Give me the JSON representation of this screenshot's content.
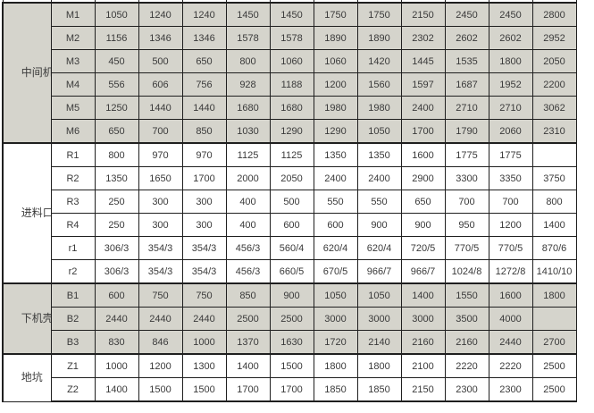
{
  "page": {
    "background": "#ffffff"
  },
  "table": {
    "border_color": "#1f1f1f",
    "text_color": "#3a3a3a",
    "shaded_bg": "#d5d4cc",
    "plain_bg": "#ffffff",
    "data_columns": 11,
    "groups": [
      {
        "id": "middle-casing",
        "label": "中间机壳",
        "label_shaded": false,
        "rows_shaded": true,
        "rows": [
          {
            "key": "M1",
            "values": [
              "1050",
              "1240",
              "1240",
              "1450",
              "1450",
              "1750",
              "1750",
              "2150",
              "2450",
              "2450",
              "2800"
            ]
          },
          {
            "key": "M2",
            "values": [
              "1156",
              "1346",
              "1346",
              "1578",
              "1578",
              "1890",
              "1890",
              "2302",
              "2602",
              "2602",
              "2952"
            ]
          },
          {
            "key": "M3",
            "values": [
              "450",
              "500",
              "650",
              "800",
              "1060",
              "1060",
              "1420",
              "1445",
              "1535",
              "1800",
              "2050"
            ]
          },
          {
            "key": "M4",
            "values": [
              "556",
              "606",
              "756",
              "928",
              "1188",
              "1200",
              "1560",
              "1597",
              "1687",
              "1952",
              "2200"
            ]
          },
          {
            "key": "M5",
            "values": [
              "1250",
              "1440",
              "1440",
              "1680",
              "1680",
              "1980",
              "1980",
              "2400",
              "2710",
              "2710",
              "3062"
            ]
          },
          {
            "key": "M6",
            "values": [
              "650",
              "700",
              "850",
              "1030",
              "1290",
              "1290",
              "1050",
              "1700",
              "1790",
              "2060",
              "2310"
            ]
          }
        ]
      },
      {
        "id": "feed-inlet",
        "label": "进料口",
        "label_shaded": false,
        "rows_shaded": false,
        "rows": [
          {
            "key": "R1",
            "values": [
              "800",
              "970",
              "970",
              "1125",
              "1125",
              "1350",
              "1350",
              "1600",
              "1775",
              "1775",
              ""
            ]
          },
          {
            "key": "R2",
            "values": [
              "1350",
              "1650",
              "1700",
              "2000",
              "2050",
              "2400",
              "2400",
              "2900",
              "3300",
              "3350",
              "3750"
            ]
          },
          {
            "key": "R3",
            "values": [
              "250",
              "300",
              "300",
              "400",
              "500",
              "550",
              "550",
              "650",
              "700",
              "700",
              "800"
            ]
          },
          {
            "key": "R4",
            "values": [
              "250",
              "300",
              "300",
              "400",
              "600",
              "600",
              "900",
              "900",
              "950",
              "1200",
              "1400"
            ]
          },
          {
            "key": "r1",
            "values": [
              "306/3",
              "354/3",
              "354/3",
              "456/3",
              "560/4",
              "620/4",
              "620/4",
              "720/5",
              "770/5",
              "770/5",
              "870/6"
            ]
          },
          {
            "key": "r2",
            "values": [
              "306/3",
              "354/3",
              "354/3",
              "456/3",
              "660/5",
              "670/5",
              "966/7",
              "966/7",
              "1024/8",
              "1272/8",
              "1410/10"
            ]
          }
        ]
      },
      {
        "id": "lower-casing",
        "label": "下机壳",
        "label_shaded": true,
        "rows_shaded": true,
        "rows": [
          {
            "key": "B1",
            "values": [
              "600",
              "750",
              "750",
              "850",
              "900",
              "1050",
              "1050",
              "1400",
              "1550",
              "1600",
              "1800"
            ]
          },
          {
            "key": "B2",
            "values": [
              "2440",
              "2440",
              "2440",
              "2500",
              "2500",
              "3000",
              "3000",
              "3000",
              "3500",
              "4000",
              ""
            ]
          },
          {
            "key": "B3",
            "values": [
              "830",
              "846",
              "1000",
              "1370",
              "1630",
              "1720",
              "2140",
              "2160",
              "2160",
              "2440",
              "2700"
            ]
          }
        ]
      },
      {
        "id": "pit",
        "label": "地坑",
        "label_shaded": false,
        "rows_shaded": false,
        "rows": [
          {
            "key": "Z1",
            "values": [
              "1000",
              "1200",
              "1300",
              "1400",
              "1500",
              "1800",
              "1800",
              "2100",
              "2220",
              "2220",
              "2500"
            ]
          },
          {
            "key": "Z2",
            "values": [
              "1400",
              "1500",
              "1500",
              "1700",
              "1700",
              "1850",
              "1850",
              "2150",
              "2300",
              "2300",
              "2500"
            ]
          }
        ]
      }
    ]
  }
}
